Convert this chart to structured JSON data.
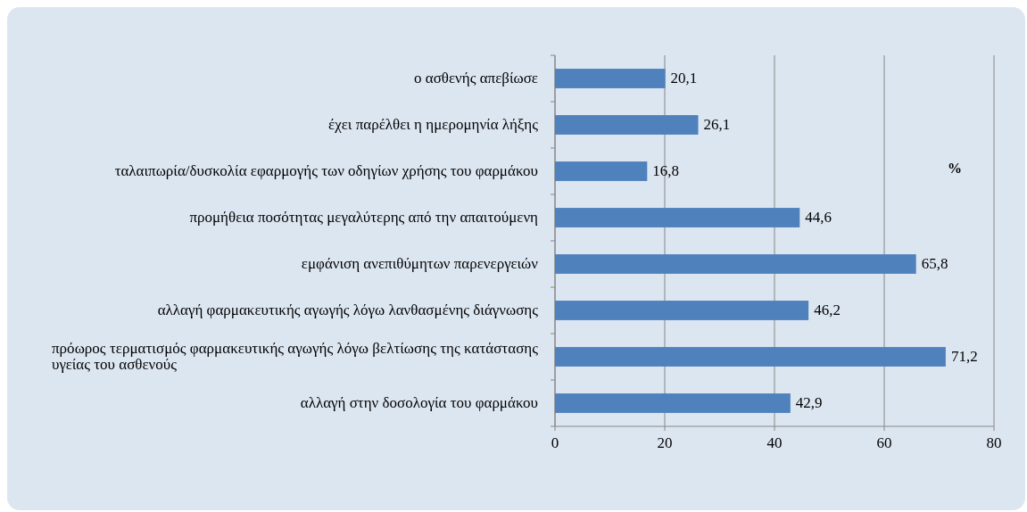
{
  "chart_data": {
    "type": "bar",
    "orientation": "horizontal",
    "xlabel": "%",
    "categories": [
      "ο ασθενής απεβίωσε",
      "έχει παρέλθει η ημερομηνία λήξης",
      "ταλαιπωρία/δυσκολία εφαρμογής των οδηγίων χρήσης του φαρμάκου",
      "προμήθεια ποσότητας μεγαλύτερης από την απαιτούμενη",
      "εμφάνιση ανεπιθύμητων παρενεργειών",
      "αλλαγή φαρμακευτικής αγωγής λόγω λανθασμένης διάγνωσης",
      "πρόωρος τερματισμός φαρμακευτικής αγωγής λόγω βελτίωσης της κατάστασης υγείας του ασθενούς",
      "αλλαγή στην δοσολογία του φαρμάκου"
    ],
    "values": [
      20.1,
      26.1,
      16.8,
      44.6,
      65.8,
      46.2,
      71.2,
      42.9
    ],
    "value_labels": [
      "20,1",
      "26,1",
      "16,8",
      "44,6",
      "65,8",
      "46,2",
      "71,2",
      "42,9"
    ],
    "color": "#4f81bd",
    "xlim": [
      0,
      80
    ],
    "xticks": [
      0,
      20,
      40,
      60,
      80
    ],
    "grid": "x"
  }
}
